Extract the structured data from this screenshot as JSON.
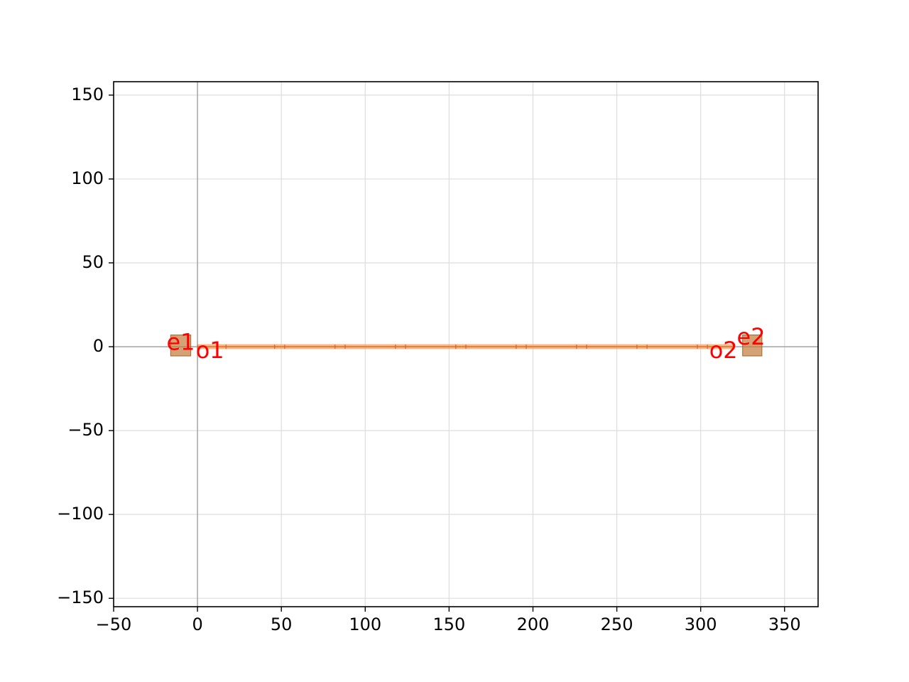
{
  "chart_data": {
    "type": "layout",
    "title": "",
    "xlabel": "",
    "ylabel": "",
    "xlim": [
      -50,
      370
    ],
    "ylim": [
      -155,
      158
    ],
    "x_ticks": [
      -50,
      0,
      50,
      100,
      150,
      200,
      250,
      300,
      350
    ],
    "y_ticks": [
      -150,
      -100,
      -50,
      0,
      50,
      100,
      150
    ],
    "x_tick_labels": [
      "−50",
      "0",
      "50",
      "100",
      "150",
      "200",
      "250",
      "300",
      "350"
    ],
    "y_tick_labels": [
      "−150",
      "−100",
      "−50",
      "0",
      "50",
      "100",
      "150"
    ],
    "grid": true,
    "colors": {
      "waveguide": "#f4a262",
      "waveguide_core": "#e8762d",
      "pad": "#c07a3a",
      "port_label": "#ff0000",
      "grid": "#dddddd",
      "origin_axis": "#aaaaaa"
    },
    "waveguide": {
      "x": [
        0,
        320
      ],
      "y": 0,
      "width": 1.5
    },
    "segment_marks": [
      0,
      17,
      46,
      52,
      82,
      88,
      118,
      124,
      154,
      160,
      190,
      196,
      226,
      232,
      262,
      268,
      298,
      304,
      320
    ],
    "pads": [
      {
        "name": "left-pad",
        "x": [
          -16,
          -4
        ],
        "y": [
          -5.5,
          7
        ]
      },
      {
        "name": "right-pad",
        "x": [
          325,
          336.5
        ],
        "y": [
          -5.5,
          7
        ]
      }
    ],
    "ports": [
      {
        "label": "e1",
        "x": -10,
        "y": 2,
        "anchor": "middle"
      },
      {
        "label": "o1",
        "x": -1,
        "y": -3,
        "anchor": "start"
      },
      {
        "label": "o2",
        "x": 322,
        "y": -3,
        "anchor": "end"
      },
      {
        "label": "e2",
        "x": 330,
        "y": 5,
        "anchor": "middle"
      }
    ]
  }
}
